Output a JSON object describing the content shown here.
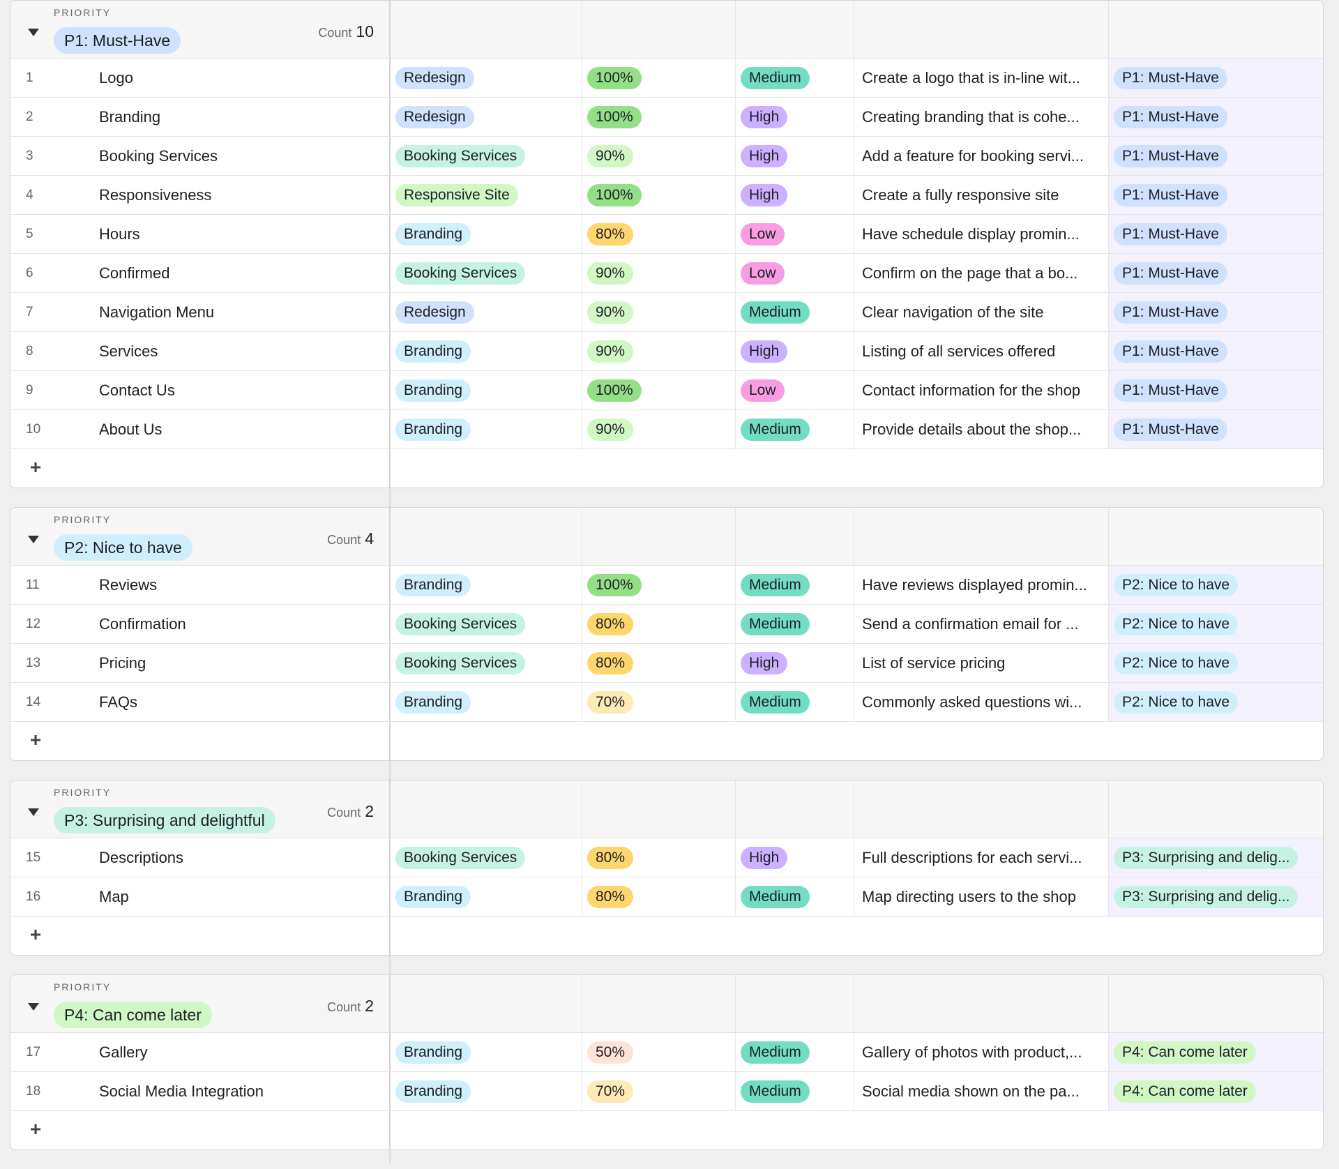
{
  "field_label": "PRIORITY",
  "count_label": "Count",
  "add_symbol": "+",
  "colors": {
    "category": {
      "Redesign": "#d0e1fd",
      "Booking Services": "#c6f2e4",
      "Responsive Site": "#d1f7c4",
      "Branding": "#cfeffd"
    },
    "progress": {
      "100%": "#93df86",
      "90%": "#d1f7c4",
      "80%": "#ffd66e",
      "70%": "#ffeab6",
      "50%": "#fee2d5"
    },
    "level": {
      "Medium": "#72ddc3",
      "High": "#cdb0ff",
      "Low": "#f99de2"
    },
    "priority": {
      "P1: Must-Have": "#d0e1fd",
      "P2: Nice to have": "#cfeffd",
      "P3: Surprising and delightful": "#c6f2e4",
      "P4: Can come later": "#d1f7c4"
    }
  },
  "groups": [
    {
      "priority": "P1: Must-Have",
      "count": "10",
      "rows": [
        {
          "num": "1",
          "name": "Logo",
          "category": "Redesign",
          "progress": "100%",
          "level": "Medium",
          "desc": "Create a logo that is in-line wit...",
          "priority": "P1: Must-Have"
        },
        {
          "num": "2",
          "name": "Branding",
          "category": "Redesign",
          "progress": "100%",
          "level": "High",
          "desc": "Creating branding that is cohe...",
          "priority": "P1: Must-Have"
        },
        {
          "num": "3",
          "name": "Booking Services",
          "category": "Booking Services",
          "progress": "90%",
          "level": "High",
          "desc": "Add a feature for booking servi...",
          "priority": "P1: Must-Have"
        },
        {
          "num": "4",
          "name": "Responsiveness",
          "category": "Responsive Site",
          "progress": "100%",
          "level": "High",
          "desc": "Create a fully responsive site",
          "priority": "P1: Must-Have"
        },
        {
          "num": "5",
          "name": "Hours",
          "category": "Branding",
          "progress": "80%",
          "level": "Low",
          "desc": "Have schedule display promin...",
          "priority": "P1: Must-Have"
        },
        {
          "num": "6",
          "name": "Confirmed",
          "category": "Booking Services",
          "progress": "90%",
          "level": "Low",
          "desc": "Confirm on the page that a bo...",
          "priority": "P1: Must-Have"
        },
        {
          "num": "7",
          "name": "Navigation Menu",
          "category": "Redesign",
          "progress": "90%",
          "level": "Medium",
          "desc": "Clear navigation of the site",
          "priority": "P1: Must-Have"
        },
        {
          "num": "8",
          "name": "Services",
          "category": "Branding",
          "progress": "90%",
          "level": "High",
          "desc": "Listing of all services offered",
          "priority": "P1: Must-Have"
        },
        {
          "num": "9",
          "name": "Contact Us",
          "category": "Branding",
          "progress": "100%",
          "level": "Low",
          "desc": "Contact information for the shop",
          "priority": "P1: Must-Have"
        },
        {
          "num": "10",
          "name": "About Us",
          "category": "Branding",
          "progress": "90%",
          "level": "Medium",
          "desc": "Provide details about the shop...",
          "priority": "P1: Must-Have"
        }
      ]
    },
    {
      "priority": "P2: Nice to have",
      "count": "4",
      "rows": [
        {
          "num": "11",
          "name": "Reviews",
          "category": "Branding",
          "progress": "100%",
          "level": "Medium",
          "desc": "Have reviews displayed promin...",
          "priority": "P2: Nice to have"
        },
        {
          "num": "12",
          "name": "Confirmation",
          "category": "Booking Services",
          "progress": "80%",
          "level": "Medium",
          "desc": "Send a confirmation email for ...",
          "priority": "P2: Nice to have"
        },
        {
          "num": "13",
          "name": "Pricing",
          "category": "Booking Services",
          "progress": "80%",
          "level": "High",
          "desc": "List of service pricing",
          "priority": "P2: Nice to have"
        },
        {
          "num": "14",
          "name": "FAQs",
          "category": "Branding",
          "progress": "70%",
          "level": "Medium",
          "desc": "Commonly asked questions wi...",
          "priority": "P2: Nice to have"
        }
      ]
    },
    {
      "priority": "P3: Surprising and delightful",
      "count": "2",
      "rows": [
        {
          "num": "15",
          "name": "Descriptions",
          "category": "Booking Services",
          "progress": "80%",
          "level": "High",
          "desc": "Full descriptions for each servi...",
          "priority": "P3: Surprising and delig..."
        },
        {
          "num": "16",
          "name": "Map",
          "category": "Branding",
          "progress": "80%",
          "level": "Medium",
          "desc": "Map directing users to the shop",
          "priority": "P3: Surprising and delig..."
        }
      ]
    },
    {
      "priority": "P4: Can come later",
      "count": "2",
      "rows": [
        {
          "num": "17",
          "name": "Gallery",
          "category": "Branding",
          "progress": "50%",
          "level": "Medium",
          "desc": "Gallery of photos with product,...",
          "priority": "P4: Can come later"
        },
        {
          "num": "18",
          "name": "Social Media Integration",
          "category": "Branding",
          "progress": "70%",
          "level": "Medium",
          "desc": "Social media shown on the pa...",
          "priority": "P4: Can come later"
        }
      ]
    }
  ]
}
